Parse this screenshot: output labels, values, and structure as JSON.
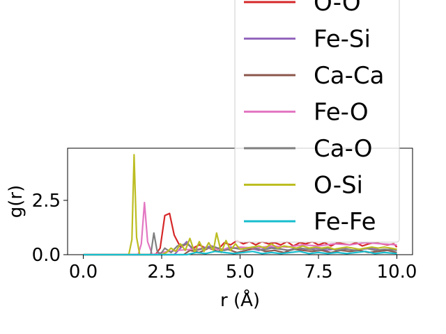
{
  "chart_data": {
    "type": "line",
    "xlabel": "r (Å)",
    "ylabel": "g(r)",
    "xlim": [
      -0.5,
      10.5
    ],
    "ylim": [
      0,
      4.9
    ],
    "x_ticks": [
      0.0,
      2.5,
      5.0,
      7.5,
      10.0
    ],
    "x_tick_labels": [
      "0.0",
      "2.5",
      "5.0",
      "7.5",
      "10.0"
    ],
    "y_ticks": [
      0.0,
      2.5
    ],
    "y_tick_labels": [
      "0.0",
      "2.5"
    ],
    "grid": false,
    "legend_position": "top-right",
    "series": [
      {
        "name": "O-O",
        "color": "#d62728",
        "x": [
          0,
          2.3,
          2.45,
          2.6,
          2.75,
          2.9,
          3.1,
          3.3,
          3.5,
          3.7,
          3.9,
          4.1,
          4.3,
          4.5,
          4.7,
          4.9,
          5.1,
          5.3,
          5.5,
          5.7,
          5.9,
          6.1,
          6.3,
          6.5,
          6.7,
          6.9,
          7.1,
          7.3,
          7.5,
          7.7,
          7.9,
          8.1,
          8.3,
          8.5,
          8.7,
          8.9,
          9.1,
          9.3,
          9.5,
          9.7,
          9.9,
          10.0
        ],
        "values": [
          0,
          0,
          0.3,
          1.8,
          1.9,
          0.9,
          0.35,
          0.5,
          0.3,
          0.45,
          0.3,
          0.35,
          0.25,
          0.55,
          0.45,
          0.65,
          0.5,
          0.6,
          0.45,
          0.6,
          0.5,
          0.55,
          0.45,
          0.6,
          0.4,
          0.55,
          0.5,
          0.6,
          0.45,
          0.55,
          0.4,
          0.55,
          0.5,
          0.45,
          0.55,
          0.4,
          0.5,
          0.55,
          0.5,
          0.45,
          0.5,
          0.35
        ]
      },
      {
        "name": "Fe-Si",
        "color": "#9467bd",
        "x": [
          0,
          2.9,
          3.1,
          3.3,
          3.5,
          3.8,
          4.1,
          4.4,
          4.7,
          5.0,
          5.3,
          5.6,
          5.9,
          6.2,
          6.5,
          6.8,
          7.1,
          7.4,
          7.7,
          8.0,
          8.3,
          8.6,
          8.9,
          9.2,
          9.5,
          9.8,
          10.0
        ],
        "values": [
          0,
          0,
          0.3,
          0.6,
          0.2,
          0.3,
          0.4,
          0.2,
          0.35,
          0.25,
          0.3,
          0.2,
          0.35,
          0.3,
          0.2,
          0.3,
          0.25,
          0.3,
          0.2,
          0.25,
          0.3,
          0.2,
          0.25,
          0.3,
          0.2,
          0.25,
          0.2
        ]
      },
      {
        "name": "Ca-Ca",
        "color": "#8c564b",
        "x": [
          0,
          3.2,
          3.4,
          3.7,
          4.0,
          4.3,
          4.6,
          4.9,
          5.2,
          5.5,
          5.8,
          6.1,
          6.4,
          6.7,
          7.0,
          7.3,
          7.6,
          7.9,
          8.2,
          8.5,
          8.8,
          9.1,
          9.4,
          9.7,
          10.0
        ],
        "values": [
          0,
          0,
          0.2,
          0.1,
          0.3,
          0.15,
          0.25,
          0.1,
          0.2,
          0.3,
          0.15,
          0.2,
          0.1,
          0.25,
          0.2,
          0.15,
          0.2,
          0.1,
          0.2,
          0.15,
          0.2,
          0.1,
          0.15,
          0.2,
          0.1
        ]
      },
      {
        "name": "Fe-O",
        "color": "#e377c2",
        "x": [
          0,
          1.75,
          1.85,
          1.95,
          2.05,
          2.2,
          2.5,
          3.0,
          3.5,
          4.0,
          4.5,
          5.0,
          5.5,
          6.0,
          6.5,
          7.0,
          7.5,
          8.0,
          8.5,
          9.0,
          9.5,
          10.0
        ],
        "values": [
          0,
          0,
          0.5,
          2.4,
          0.6,
          0,
          0.1,
          0.2,
          0.25,
          0.3,
          0.25,
          0.35,
          0.3,
          0.4,
          0.35,
          0.45,
          0.4,
          0.5,
          0.45,
          0.55,
          0.5,
          0.45
        ]
      },
      {
        "name": "Ca-O",
        "color": "#7f7f7f",
        "x": [
          0,
          2.15,
          2.25,
          2.35,
          2.45,
          2.6,
          2.8,
          3.0,
          3.3,
          3.6,
          3.9,
          4.2,
          4.5,
          4.8,
          5.1,
          5.4,
          5.7,
          6.0,
          6.3,
          6.6,
          6.9,
          7.2,
          7.5,
          7.8,
          8.1,
          8.4,
          8.7,
          9.0,
          9.3,
          9.6,
          10.0
        ],
        "values": [
          0,
          0,
          1.0,
          0.2,
          0,
          0.3,
          0.1,
          0.4,
          0.5,
          0.2,
          0.3,
          0.35,
          0.2,
          0.3,
          0.25,
          0.35,
          0.2,
          0.3,
          0.25,
          0.2,
          0.3,
          0.25,
          0.2,
          0.3,
          0.2,
          0.25,
          0.2,
          0.3,
          0.2,
          0.25,
          0.2
        ]
      },
      {
        "name": "O-Si",
        "color": "#bcbd22",
        "x": [
          0,
          1.45,
          1.55,
          1.62,
          1.7,
          1.8,
          2.5,
          2.65,
          2.8,
          2.95,
          3.1,
          3.25,
          3.4,
          3.55,
          3.7,
          3.85,
          4.0,
          4.15,
          4.25,
          4.4,
          4.55,
          4.7,
          4.85,
          5.0,
          5.2,
          5.4,
          5.6,
          5.8,
          6.0,
          6.2,
          6.4,
          6.6,
          6.8,
          7.0,
          7.2,
          7.4,
          7.6,
          7.8,
          8.0,
          8.2,
          8.4,
          8.6,
          8.8,
          9.0,
          9.2,
          9.4,
          9.6,
          9.8,
          10.0
        ],
        "values": [
          0,
          0,
          0.7,
          4.6,
          0.8,
          0,
          0,
          0.1,
          0.3,
          0.15,
          0.5,
          0.2,
          0.75,
          0.1,
          0.6,
          0.15,
          0.55,
          0.2,
          1.0,
          0.1,
          0.65,
          0.2,
          0.5,
          0.25,
          0.3,
          0.35,
          0.4,
          0.3,
          0.5,
          0.3,
          0.4,
          0.35,
          0.3,
          0.4,
          0.3,
          0.35,
          0.3,
          0.35,
          0.25,
          0.3,
          0.35,
          0.3,
          0.25,
          0.3,
          0.35,
          0.3,
          0.35,
          0.3,
          0.25
        ]
      },
      {
        "name": "Fe-Fe",
        "color": "#17becf",
        "x": [
          0,
          3.3,
          3.6,
          3.9,
          4.2,
          4.5,
          4.8,
          5.1,
          5.4,
          5.7,
          6.0,
          6.3,
          6.6,
          6.9,
          7.2,
          7.5,
          7.8,
          8.1,
          8.4,
          8.7,
          9.0,
          9.3,
          9.6,
          10.0
        ],
        "values": [
          0,
          0,
          0.1,
          0.05,
          0.15,
          0.1,
          0.05,
          0.1,
          0.15,
          0.05,
          0.1,
          0.05,
          0.1,
          0.15,
          0.05,
          0.1,
          0.05,
          0.1,
          0.05,
          0.1,
          0.15,
          0.05,
          0.1,
          0.05
        ]
      }
    ]
  }
}
